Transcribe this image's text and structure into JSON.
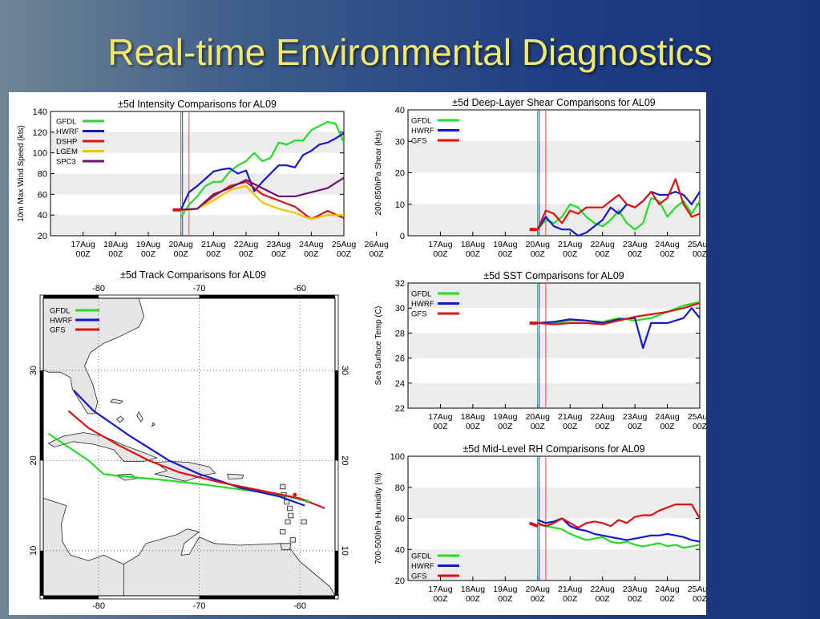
{
  "slide": {
    "title": "Real-time Environmental Diagnostics"
  },
  "colors": {
    "GFDL": "#22dd22",
    "HWRF": "#1616cc",
    "DSHP": "#dd1111",
    "LGEM": "#f5c000",
    "SPC3": "#6b1470",
    "GFS": "#dd1111"
  },
  "time_ticks": [
    "17Aug 00Z",
    "18Aug 00Z",
    "19Aug 00Z",
    "20Aug 00Z",
    "21Aug 00Z",
    "22Aug 00Z",
    "23Aug 00Z",
    "24Aug 00Z",
    "25Aug 00Z",
    "26Aug 00Z"
  ],
  "chart_data": [
    {
      "id": "intensity",
      "type": "line",
      "title": "±5d Intensity Comparisons for AL09",
      "ylabel": "10m Max Wind Speed (kts)",
      "ylim": [
        20,
        140
      ],
      "yticks": [
        20,
        40,
        60,
        80,
        100,
        120,
        140
      ],
      "xlim": [
        -4,
        5
      ],
      "x_unit": "days after 21Aug 00Z",
      "grid": "alternating bands",
      "series": [
        {
          "name": "GFDL",
          "color": "#22dd22",
          "x": [
            0,
            0.25,
            0.5,
            0.75,
            1,
            1.25,
            1.5,
            1.75,
            2,
            2.25,
            2.5,
            2.75,
            3,
            3.25,
            3.5,
            3.75,
            4,
            4.25,
            4.5,
            4.75,
            5
          ],
          "y": [
            38,
            50,
            58,
            68,
            72,
            72,
            82,
            88,
            92,
            100,
            92,
            95,
            110,
            108,
            112,
            112,
            122,
            126,
            130,
            128,
            110
          ]
        },
        {
          "name": "HWRF",
          "color": "#1616cc",
          "x": [
            0,
            0.25,
            0.5,
            0.75,
            1,
            1.25,
            1.5,
            1.75,
            2,
            2.25,
            2.5,
            2.75,
            3,
            3.25,
            3.5,
            3.75,
            4,
            4.25,
            4.5,
            4.75,
            5
          ],
          "y": [
            45,
            62,
            68,
            75,
            82,
            84,
            85,
            80,
            83,
            63,
            72,
            80,
            88,
            88,
            86,
            98,
            102,
            108,
            110,
            114,
            119
          ]
        },
        {
          "name": "DSHP",
          "color": "#dd1111",
          "x": [
            0,
            0.5,
            1,
            1.5,
            2,
            2.5,
            3,
            3.5,
            4,
            4.5,
            5
          ],
          "y": [
            45,
            46,
            58,
            68,
            72,
            60,
            54,
            48,
            36,
            44,
            37
          ]
        },
        {
          "name": "LGEM",
          "color": "#f5c000",
          "x": [
            0,
            0.5,
            1,
            1.5,
            2,
            2.5,
            3,
            3.5,
            4,
            4.5,
            5
          ],
          "y": [
            44,
            46,
            54,
            64,
            68,
            52,
            46,
            42,
            36,
            40,
            40
          ]
        },
        {
          "name": "SPC3",
          "color": "#6b1470",
          "x": [
            0,
            0.5,
            1,
            1.5,
            2,
            2.5,
            3,
            3.5,
            4,
            4.5,
            5
          ],
          "y": [
            45,
            46,
            60,
            66,
            74,
            66,
            58,
            58,
            62,
            66,
            76
          ]
        }
      ],
      "observed": {
        "color": "#dd1111",
        "x": [
          -0.25,
          0
        ],
        "y": [
          45,
          45
        ]
      }
    },
    {
      "id": "shear",
      "type": "line",
      "title": "±5d Deep-Layer Shear Comparisons for AL09",
      "ylabel": "200-850hPa Shear (kts)",
      "ylim": [
        0,
        40
      ],
      "yticks": [
        0,
        10,
        20,
        30,
        40
      ],
      "xlim": [
        -4,
        5
      ],
      "x_unit": "days after 21Aug 00Z",
      "grid": "alternating bands",
      "series": [
        {
          "name": "GFDL",
          "color": "#22dd22",
          "x": [
            0,
            0.25,
            0.5,
            0.75,
            1,
            1.25,
            1.5,
            1.75,
            2,
            2.25,
            2.5,
            2.75,
            3,
            3.25,
            3.5,
            3.75,
            4,
            4.25,
            4.5,
            4.75,
            5
          ],
          "y": [
            2,
            5,
            4,
            6,
            10,
            9,
            6,
            4,
            3,
            5,
            8,
            4,
            2,
            4,
            12,
            11,
            6,
            9,
            11,
            7,
            11
          ]
        },
        {
          "name": "HWRF",
          "color": "#1616cc",
          "x": [
            0,
            0.25,
            0.5,
            0.75,
            1,
            1.25,
            1.5,
            1.75,
            2,
            2.25,
            2.5,
            2.75,
            3,
            3.25,
            3.5,
            3.75,
            4,
            4.25,
            4.5,
            4.75,
            5
          ],
          "y": [
            2,
            6,
            3,
            2,
            2,
            0,
            1,
            3,
            5,
            9,
            7,
            10,
            9,
            11,
            14,
            13,
            13,
            14,
            13,
            10,
            14
          ]
        },
        {
          "name": "GFS",
          "color": "#dd1111",
          "x": [
            0,
            0.25,
            0.5,
            0.75,
            1,
            1.25,
            1.5,
            1.75,
            2,
            2.25,
            2.5,
            2.75,
            3,
            3.25,
            3.5,
            3.75,
            4,
            4.25,
            4.5,
            4.75,
            5
          ],
          "y": [
            2,
            8,
            7,
            4,
            8,
            7,
            9,
            9,
            9,
            11,
            13,
            10,
            9,
            11,
            14,
            10,
            12,
            18,
            10,
            6,
            7
          ]
        }
      ],
      "observed": {
        "color": "#dd1111",
        "x": [
          -0.25,
          0
        ],
        "y": [
          2,
          2
        ]
      }
    },
    {
      "id": "sst",
      "type": "line",
      "title": "±5d SST Comparisons for AL09",
      "ylabel": "Sea Surface Temp (C)",
      "ylim": [
        22,
        32
      ],
      "yticks": [
        22,
        24,
        26,
        28,
        30,
        32
      ],
      "xlim": [
        -4,
        5
      ],
      "x_unit": "days after 21Aug 00Z",
      "grid": "alternating bands",
      "series": [
        {
          "name": "GFDL",
          "color": "#22dd22",
          "x": [
            0,
            0.5,
            1,
            1.5,
            2,
            2.5,
            3,
            3.5,
            4,
            4.5,
            5
          ],
          "y": [
            28.8,
            28.8,
            29,
            29,
            28.9,
            29.2,
            29,
            29.2,
            29.7,
            30.2,
            30.5
          ]
        },
        {
          "name": "HWRF",
          "color": "#1616cc",
          "x": [
            0,
            0.5,
            1,
            1.5,
            2,
            2.5,
            3,
            3.25,
            3.5,
            3.75,
            4,
            4.25,
            4.5,
            4.75,
            5
          ],
          "y": [
            28.8,
            28.9,
            29.1,
            29,
            28.8,
            29.1,
            29.2,
            26.8,
            28.8,
            28.8,
            28.8,
            29.0,
            29.2,
            30.0,
            29.2
          ]
        },
        {
          "name": "GFS",
          "color": "#dd1111",
          "x": [
            0,
            0.5,
            1,
            1.5,
            2,
            2.5,
            3,
            3.5,
            4,
            4.5,
            5
          ],
          "y": [
            28.8,
            28.7,
            28.8,
            28.8,
            28.7,
            29.0,
            29.3,
            29.5,
            29.7,
            30.0,
            30.4
          ]
        }
      ],
      "observed": {
        "color": "#dd1111",
        "x": [
          -0.25,
          0
        ],
        "y": [
          28.8,
          28.8
        ]
      }
    },
    {
      "id": "rh",
      "type": "line",
      "title": "±5d Mid-Level RH Comparisons for AL09",
      "ylabel": "700-500hPa Humidity (%)",
      "ylim": [
        20,
        100
      ],
      "yticks": [
        20,
        40,
        60,
        80,
        100
      ],
      "xlim": [
        -4,
        5
      ],
      "x_unit": "days after 21Aug 00Z",
      "grid": "alternating bands",
      "series": [
        {
          "name": "GFDL",
          "color": "#22dd22",
          "x": [
            0,
            0.25,
            0.5,
            0.75,
            1,
            1.25,
            1.5,
            1.75,
            2,
            2.25,
            2.5,
            2.75,
            3,
            3.25,
            3.5,
            3.75,
            4,
            4.25,
            4.5,
            4.75,
            5
          ],
          "y": [
            56,
            55,
            54,
            53,
            50,
            48,
            46,
            47,
            48,
            45,
            44,
            45,
            43,
            42,
            43,
            44,
            42,
            43,
            41,
            42,
            43
          ]
        },
        {
          "name": "HWRF",
          "color": "#1616cc",
          "x": [
            0,
            0.25,
            0.5,
            0.75,
            1,
            1.25,
            1.5,
            1.75,
            2,
            2.25,
            2.5,
            2.75,
            3,
            3.25,
            3.5,
            3.75,
            4,
            4.25,
            4.5,
            4.75,
            5
          ],
          "y": [
            59,
            57,
            58,
            60,
            55,
            53,
            52,
            50,
            49,
            48,
            47,
            46,
            47,
            48,
            49,
            49,
            50,
            49,
            48,
            46,
            45
          ]
        },
        {
          "name": "GFS",
          "color": "#dd1111",
          "x": [
            0,
            0.25,
            0.5,
            0.75,
            1,
            1.25,
            1.5,
            1.75,
            2,
            2.25,
            2.5,
            2.75,
            3,
            3.25,
            3.5,
            3.75,
            4,
            4.25,
            4.5,
            4.75,
            5
          ],
          "y": [
            57,
            55,
            57,
            60,
            57,
            54,
            57,
            58,
            57,
            55,
            59,
            57,
            61,
            62,
            62,
            65,
            67,
            69,
            69,
            69,
            60
          ]
        }
      ],
      "observed": {
        "color": "#dd1111",
        "x": [
          -0.25,
          0
        ],
        "y": [
          57,
          55
        ]
      }
    },
    {
      "id": "track",
      "type": "line",
      "title": "±5d Track Comparisons for AL09",
      "lon_ticks": [
        "-80",
        "-70",
        "-60"
      ],
      "lat_ticks": [
        "30",
        "20",
        "10"
      ],
      "lonlim": [
        -85.5,
        -56.5
      ],
      "latlim": [
        5,
        38
      ],
      "series": [
        {
          "name": "GFDL",
          "color": "#22dd22",
          "lon": [
            -59.3,
            -62,
            -66,
            -70,
            -74,
            -78,
            -79.5,
            -81,
            -85
          ],
          "lat": [
            15.5,
            16.2,
            16.8,
            17.4,
            17.9,
            18.3,
            18.5,
            20.0,
            23.0
          ]
        },
        {
          "name": "HWRF",
          "color": "#1616cc",
          "lon": [
            -59.5,
            -62,
            -66,
            -70,
            -73,
            -75,
            -77,
            -78.8,
            -80.5,
            -82.5
          ],
          "lat": [
            15.0,
            16.0,
            17.0,
            18.5,
            20.0,
            21.4,
            22.8,
            24.2,
            25.5,
            27.8
          ]
        },
        {
          "name": "GFS",
          "color": "#dd1111",
          "lon": [
            -57.5,
            -60,
            -64,
            -68,
            -72,
            -75,
            -78,
            -81,
            -83
          ],
          "lat": [
            14.7,
            15.8,
            16.7,
            17.6,
            18.7,
            20.0,
            21.7,
            23.6,
            25.5
          ]
        }
      ]
    }
  ]
}
